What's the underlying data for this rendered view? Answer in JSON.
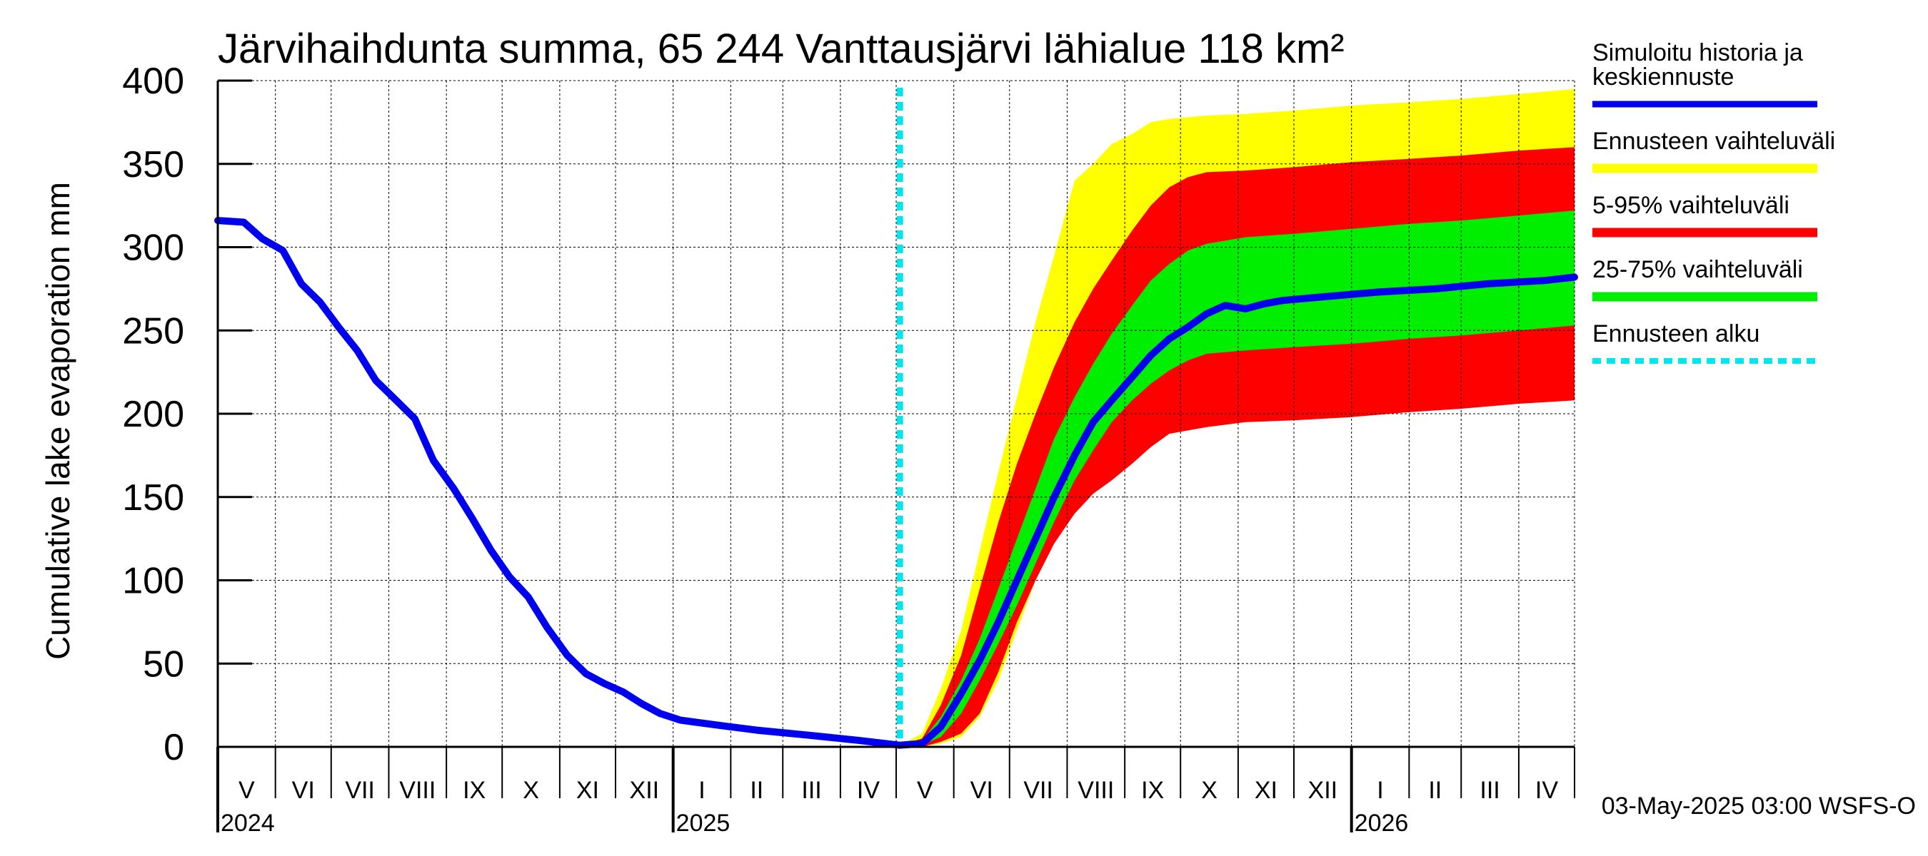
{
  "chart_data": {
    "type": "area",
    "title": "Järvihaihdunta summa, 65 244 Vanttausjärvi lähialue 118 km²",
    "ylabel": "Cumulative lake evaporation   mm",
    "ylim": [
      0,
      400
    ],
    "yticks": [
      0,
      50,
      100,
      150,
      200,
      250,
      300,
      350,
      400
    ],
    "x_range": [
      "2024-05-01",
      "2026-05-01"
    ],
    "grid": true,
    "legend_position": "right",
    "months": [
      "V",
      "VI",
      "VII",
      "VIII",
      "IX",
      "X",
      "XI",
      "XII",
      "I",
      "II",
      "III",
      "IV",
      "V",
      "VI",
      "VII",
      "VIII",
      "IX",
      "X",
      "XI",
      "XII",
      "I",
      "II",
      "III",
      "IV"
    ],
    "years": [
      {
        "label": "2024",
        "date": "2024-05-01"
      },
      {
        "label": "2025",
        "date": "2025-01-01"
      },
      {
        "label": "2026",
        "date": "2026-01-01"
      }
    ],
    "forecast_start": "2025-05-03",
    "legend": [
      {
        "label": "Simuloitu historia ja keskiennuste",
        "lines": [
          "Simuloitu historia ja",
          "keskiennuste"
        ],
        "color": "#0000ee",
        "style": "line"
      },
      {
        "label": "Ennusteen vaihteluväli",
        "lines": [
          "Ennusteen vaihteluväli"
        ],
        "color": "#ffff00",
        "style": "band"
      },
      {
        "label": "5-95% vaihteluväli",
        "lines": [
          "5-95% vaihteluväli"
        ],
        "color": "#ff0000",
        "style": "band"
      },
      {
        "label": "25-75% vaihteluväli",
        "lines": [
          "25-75% vaihteluväli"
        ],
        "color": "#00ee00",
        "style": "band"
      },
      {
        "label": "Ennusteen alku",
        "lines": [
          "Ennusteen alku"
        ],
        "color": "#00e5ee",
        "style": "dashed"
      }
    ],
    "series": [
      {
        "name": "Simuloitu historia ja keskiennuste",
        "color": "#0000ee",
        "points": [
          [
            "2024-05-01",
            316
          ],
          [
            "2024-05-15",
            315
          ],
          [
            "2024-05-25",
            305
          ],
          [
            "2024-06-05",
            298
          ],
          [
            "2024-06-15",
            278
          ],
          [
            "2024-06-25",
            267
          ],
          [
            "2024-07-05",
            252
          ],
          [
            "2024-07-15",
            238
          ],
          [
            "2024-07-25",
            220
          ],
          [
            "2024-08-05",
            208
          ],
          [
            "2024-08-15",
            197
          ],
          [
            "2024-08-25",
            172
          ],
          [
            "2024-09-05",
            155
          ],
          [
            "2024-09-15",
            137
          ],
          [
            "2024-09-25",
            118
          ],
          [
            "2024-10-05",
            102
          ],
          [
            "2024-10-15",
            90
          ],
          [
            "2024-10-25",
            72
          ],
          [
            "2024-11-05",
            55
          ],
          [
            "2024-11-15",
            44
          ],
          [
            "2024-11-25",
            38
          ],
          [
            "2024-12-05",
            33
          ],
          [
            "2024-12-15",
            26
          ],
          [
            "2024-12-25",
            20
          ],
          [
            "2025-01-05",
            16
          ],
          [
            "2025-01-25",
            13
          ],
          [
            "2025-02-15",
            10
          ],
          [
            "2025-03-15",
            7
          ],
          [
            "2025-04-10",
            4
          ],
          [
            "2025-05-03",
            1
          ],
          [
            "2025-05-15",
            2
          ],
          [
            "2025-05-25",
            12
          ],
          [
            "2025-06-05",
            32
          ],
          [
            "2025-06-15",
            52
          ],
          [
            "2025-06-25",
            75
          ],
          [
            "2025-07-05",
            100
          ],
          [
            "2025-07-15",
            125
          ],
          [
            "2025-07-25",
            150
          ],
          [
            "2025-08-05",
            175
          ],
          [
            "2025-08-15",
            195
          ],
          [
            "2025-08-25",
            208
          ],
          [
            "2025-09-05",
            222
          ],
          [
            "2025-09-15",
            235
          ],
          [
            "2025-09-25",
            245
          ],
          [
            "2025-10-05",
            252
          ],
          [
            "2025-10-15",
            260
          ],
          [
            "2025-10-25",
            265
          ],
          [
            "2025-11-05",
            263
          ],
          [
            "2025-11-15",
            266
          ],
          [
            "2025-11-25",
            268
          ],
          [
            "2025-12-15",
            270
          ],
          [
            "2026-01-15",
            273
          ],
          [
            "2026-02-15",
            275
          ],
          [
            "2026-03-15",
            278
          ],
          [
            "2026-04-15",
            280
          ],
          [
            "2026-05-01",
            282
          ]
        ]
      },
      {
        "name": "Ennusteen vaihteluväli",
        "color": "#ffff00",
        "x": [
          "2025-05-03",
          "2025-05-15",
          "2025-05-25",
          "2025-06-05",
          "2025-06-15",
          "2025-06-25",
          "2025-07-05",
          "2025-07-15",
          "2025-07-25",
          "2025-08-05",
          "2025-08-15",
          "2025-08-25",
          "2025-09-05",
          "2025-09-15",
          "2025-09-25",
          "2025-10-05",
          "2025-10-15",
          "2025-11-05",
          "2025-12-01",
          "2026-01-01",
          "2026-02-01",
          "2026-03-01",
          "2026-04-01",
          "2026-05-01"
        ],
        "upper": [
          1,
          8,
          35,
          70,
          118,
          165,
          210,
          255,
          295,
          340,
          350,
          362,
          368,
          375,
          377,
          378,
          379,
          380,
          382,
          385,
          387,
          389,
          392,
          395
        ],
        "lower": [
          0,
          0,
          2,
          6,
          18,
          40,
          70,
          100,
          125,
          145,
          160,
          170,
          178,
          185,
          188,
          190,
          192,
          195,
          198,
          200,
          202,
          205,
          208,
          210
        ]
      },
      {
        "name": "5-95% vaihteluväli",
        "color": "#ff0000",
        "x": [
          "2025-05-03",
          "2025-05-15",
          "2025-05-25",
          "2025-06-05",
          "2025-06-15",
          "2025-06-25",
          "2025-07-05",
          "2025-07-15",
          "2025-07-25",
          "2025-08-05",
          "2025-08-15",
          "2025-08-25",
          "2025-09-05",
          "2025-09-15",
          "2025-09-25",
          "2025-10-05",
          "2025-10-15",
          "2025-11-05",
          "2025-12-01",
          "2026-01-01",
          "2026-02-01",
          "2026-03-01",
          "2026-04-01",
          "2026-05-01"
        ],
        "upper": [
          1,
          5,
          25,
          55,
          95,
          135,
          170,
          200,
          228,
          255,
          275,
          292,
          310,
          325,
          336,
          342,
          345,
          346,
          348,
          351,
          353,
          355,
          358,
          360
        ],
        "lower": [
          0,
          0,
          3,
          8,
          20,
          45,
          75,
          100,
          122,
          140,
          152,
          160,
          170,
          180,
          188,
          190,
          192,
          195,
          196,
          198,
          201,
          203,
          206,
          208
        ]
      },
      {
        "name": "25-75% vaihteluväli",
        "color": "#00ee00",
        "x": [
          "2025-05-03",
          "2025-05-15",
          "2025-05-25",
          "2025-06-05",
          "2025-06-15",
          "2025-06-25",
          "2025-07-05",
          "2025-07-15",
          "2025-07-25",
          "2025-08-05",
          "2025-08-15",
          "2025-08-25",
          "2025-09-05",
          "2025-09-15",
          "2025-09-25",
          "2025-10-05",
          "2025-10-15",
          "2025-11-05",
          "2025-12-01",
          "2026-01-01",
          "2026-02-01",
          "2026-03-01",
          "2026-04-01",
          "2026-05-01"
        ],
        "upper": [
          1,
          4,
          18,
          40,
          65,
          95,
          125,
          155,
          185,
          210,
          230,
          248,
          265,
          280,
          290,
          298,
          302,
          306,
          308,
          311,
          314,
          316,
          319,
          322
        ],
        "lower": [
          0,
          1,
          6,
          20,
          40,
          62,
          85,
          110,
          135,
          160,
          178,
          195,
          208,
          218,
          226,
          232,
          236,
          238,
          240,
          242,
          245,
          247,
          250,
          253
        ]
      }
    ],
    "footer": "03-May-2025 03:00 WSFS-O"
  }
}
